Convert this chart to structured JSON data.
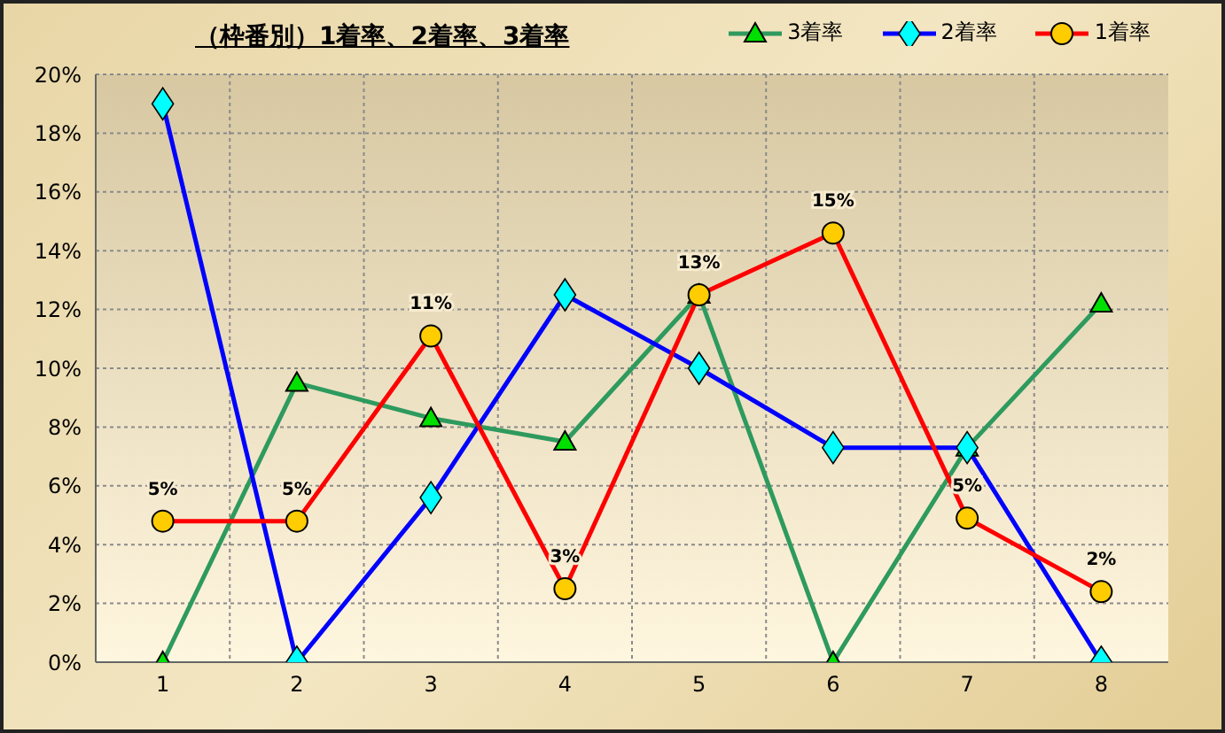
{
  "chart_data": {
    "type": "line",
    "title": "（枠番別）1着率、2着率、3着率",
    "categories": [
      "1",
      "2",
      "3",
      "4",
      "5",
      "6",
      "7",
      "8"
    ],
    "series": [
      {
        "name": "3着率",
        "color": "#2e9a5e",
        "marker": "triangle",
        "values": [
          0,
          9.5,
          8.3,
          7.5,
          12.5,
          0,
          7.3,
          12.2
        ]
      },
      {
        "name": "2着率",
        "color": "#0000ff",
        "marker": "diamond",
        "values": [
          19.0,
          0,
          5.6,
          12.5,
          10.0,
          7.3,
          7.3,
          0
        ]
      },
      {
        "name": "1着率",
        "color": "#ff0000",
        "marker": "circle",
        "values": [
          4.8,
          4.8,
          11.1,
          2.5,
          12.5,
          14.6,
          4.9,
          2.4
        ],
        "value_labels": [
          "5%",
          "5%",
          "11%",
          "3%",
          "13%",
          "15%",
          "5%",
          "2%"
        ]
      }
    ],
    "ylim": [
      0,
      20
    ],
    "yticks": [
      {
        "value": 0,
        "label": "0%"
      },
      {
        "value": 2,
        "label": "2%"
      },
      {
        "value": 4,
        "label": "4%"
      },
      {
        "value": 6,
        "label": "6%"
      },
      {
        "value": 8,
        "label": "8%"
      },
      {
        "value": 10,
        "label": "10%"
      },
      {
        "value": 12,
        "label": "12%"
      },
      {
        "value": 14,
        "label": "14%"
      },
      {
        "value": 16,
        "label": "16%"
      },
      {
        "value": 18,
        "label": "18%"
      },
      {
        "value": 20,
        "label": "20%"
      }
    ],
    "grid": true,
    "legend": "top right",
    "line_style": "solid"
  }
}
